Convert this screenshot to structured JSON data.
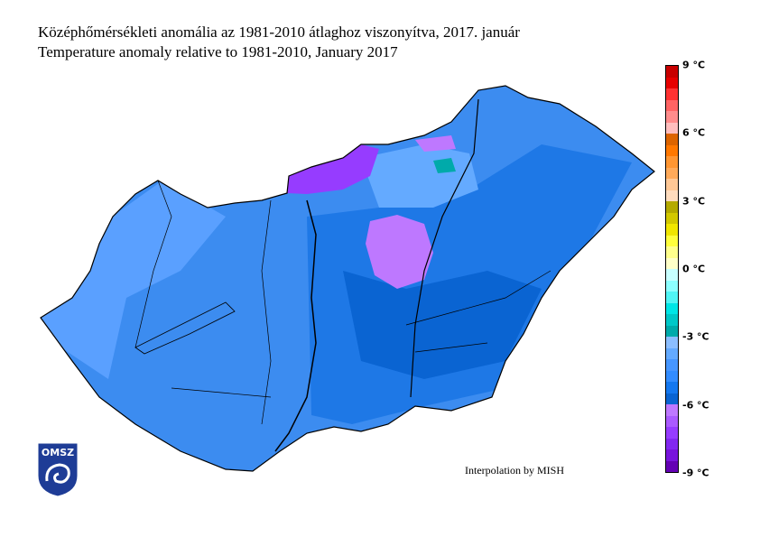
{
  "title_hu": "Középhőmérsékleti anomália az 1981-2010 átlaghoz viszonyítva, 2017. január",
  "title_en": "Temperature anomaly relative to 1981-2010, January 2017",
  "credit": "Interpolation by MISH",
  "logo_text": "OMSZ",
  "legend": {
    "unit": "°C",
    "range": [
      -9,
      9
    ],
    "step": 0.5,
    "ticks": [
      "9 °C",
      "6 °C",
      "3 °C",
      "0 °C",
      "-3 °C",
      "-6 °C",
      "-9 °C"
    ],
    "colors_top_to_bottom": [
      "#c80000",
      "#e60000",
      "#ff3232",
      "#ff6464",
      "#ff8c8c",
      "#ffbebe",
      "#dc6400",
      "#ff7800",
      "#ff9632",
      "#ffaa5a",
      "#ffc896",
      "#ffdcbe",
      "#b4aa00",
      "#d2c800",
      "#f0e600",
      "#ffff3c",
      "#ffff8c",
      "#ffffc8",
      "#c8ffff",
      "#8cffff",
      "#50f5f5",
      "#00e6e6",
      "#00c8c8",
      "#00aaaa",
      "#8cbeff",
      "#64aaff",
      "#4696ff",
      "#328cff",
      "#1478f0",
      "#0a64d2",
      "#be78ff",
      "#aa5aff",
      "#963cff",
      "#8228f0",
      "#7814dc",
      "#6400b4"
    ]
  },
  "map_colors": {
    "dominant": "#3c8cf0",
    "west": "#5aa0ff",
    "east": "#1e78e6",
    "center_cold": "#0a64d2",
    "purple": "#be78ff",
    "north_purple": "#963cff"
  }
}
